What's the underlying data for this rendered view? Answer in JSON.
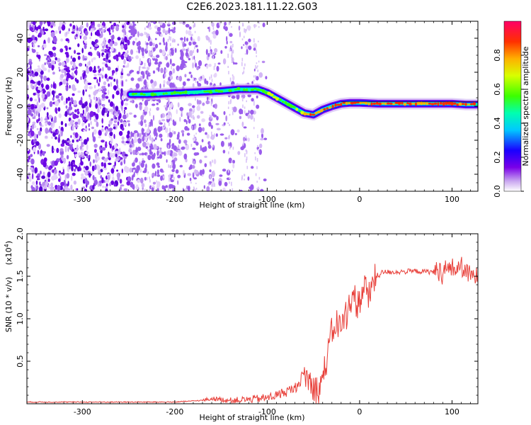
{
  "figure": {
    "title": "C2E6.2023.181.11.22.G03"
  },
  "chart_data": [
    {
      "type": "heatmap",
      "xlabel": "Height of straight line (km)",
      "ylabel": "Frequency (Hz)",
      "xlim": [
        -360,
        128
      ],
      "ylim": [
        -50,
        50
      ],
      "xticks": [
        -300,
        -200,
        -100,
        0,
        100
      ],
      "yticks": [
        -40,
        -20,
        0,
        20,
        40
      ],
      "grid": false,
      "ridge": {
        "x": [
          -248,
          -230,
          -210,
          -190,
          -170,
          -150,
          -130,
          -110,
          -100,
          -90,
          -80,
          -70,
          -60,
          -50,
          -40,
          -30,
          -20,
          -10,
          0,
          20,
          40,
          60,
          80,
          100,
          115,
          128
        ],
        "y": [
          7,
          7,
          7.5,
          8,
          8.5,
          9,
          10,
          10,
          8,
          5,
          2,
          -1,
          -4,
          -5,
          -2,
          0,
          1.5,
          2,
          2,
          1.5,
          1.5,
          1.5,
          1.5,
          1.5,
          1,
          1
        ]
      },
      "noise_region_x": [
        -360,
        -100
      ],
      "colorbar": {
        "label": "Normalized spectral amplitude",
        "range": [
          0,
          1
        ],
        "ticks": [
          "0.0",
          "0.2",
          "0.4",
          "0.6",
          "0.8"
        ]
      }
    },
    {
      "type": "line",
      "xlabel": "Height of straight line (km)",
      "ylabel": "SNR (10 * v/v)",
      "multiplier": "(x10^4)",
      "xlim": [
        -360,
        128
      ],
      "ylim": [
        0,
        2.0
      ],
      "xticks": [
        -300,
        -200,
        -100,
        0,
        100
      ],
      "yticks": [
        "0.5",
        "1.0",
        "1.5",
        "2.0"
      ],
      "grid": false,
      "series": [
        {
          "color": "#e8403a",
          "x": [
            -360,
            -300,
            -250,
            -200,
            -170,
            -160,
            -140,
            -120,
            -100,
            -90,
            -80,
            -70,
            -60,
            -55,
            -50,
            -45,
            -40,
            -35,
            -30,
            -25,
            -20,
            -15,
            -10,
            -5,
            0,
            5,
            10,
            15,
            20,
            25,
            30,
            40,
            60,
            80,
            90,
            100,
            105,
            110,
            115,
            120,
            128
          ],
          "y": [
            0.02,
            0.02,
            0.02,
            0.02,
            0.04,
            0.06,
            0.04,
            0.05,
            0.07,
            0.1,
            0.14,
            0.18,
            0.35,
            0.28,
            0.2,
            0.15,
            0.3,
            0.55,
            0.85,
            0.95,
            0.9,
            1.05,
            1.25,
            1.15,
            1.2,
            1.4,
            1.25,
            1.45,
            1.5,
            1.55,
            1.55,
            1.55,
            1.56,
            1.55,
            1.57,
            1.6,
            1.58,
            1.62,
            1.55,
            1.5,
            1.5
          ]
        }
      ]
    }
  ]
}
